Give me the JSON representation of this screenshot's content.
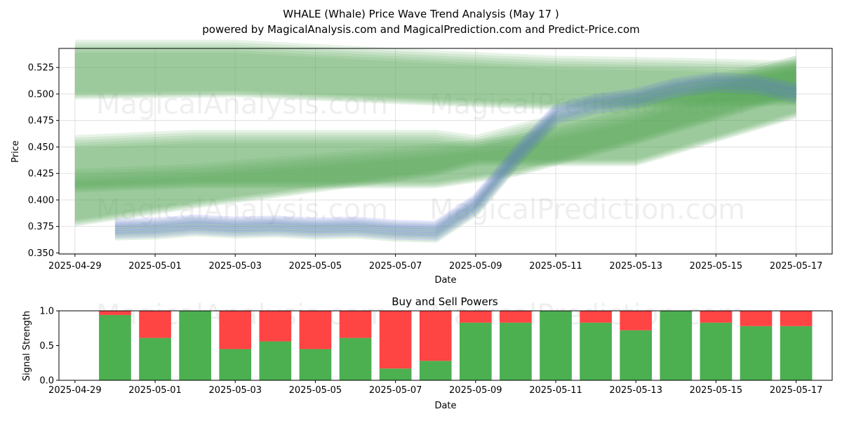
{
  "title_line1": "WHALE (Whale) Price Wave Trend Analysis (May 17 )",
  "title_line2": "powered by MagicalAnalysis.com and MagicalPrediction.com and Predict-Price.com",
  "watermarks": [
    "MagicalAnalysis.com",
    "MagicalPrediction.com"
  ],
  "colors": {
    "bullish": "#4caf50",
    "bearish": "#ff4444",
    "band_green": "#5aaa5a",
    "band_blue": "#6a6aff"
  },
  "chart_data": [
    {
      "type": "area",
      "xlabel": "Date",
      "ylabel": "Price",
      "x_ticks": [
        "2025-04-29",
        "2025-05-01",
        "2025-05-03",
        "2025-05-05",
        "2025-05-07",
        "2025-05-09",
        "2025-05-11",
        "2025-05-13",
        "2025-05-15",
        "2025-05-17"
      ],
      "y_ticks": [
        "0.350",
        "0.375",
        "0.400",
        "0.425",
        "0.450",
        "0.475",
        "0.500",
        "0.525"
      ],
      "xlim": [
        "2025-04-28.6",
        "2025-05-17.9"
      ],
      "ylim": [
        0.349,
        0.543
      ],
      "grid": true,
      "series": [
        {
          "kind": "price_wave",
          "x": [
            "2025-04-30",
            "2025-05-01",
            "2025-05-02",
            "2025-05-03",
            "2025-05-04",
            "2025-05-05",
            "2025-05-06",
            "2025-05-07",
            "2025-05-08",
            "2025-05-09",
            "2025-05-10",
            "2025-05-11",
            "2025-05-12",
            "2025-05-13",
            "2025-05-14",
            "2025-05-15",
            "2025-05-16",
            "2025-05-17"
          ],
          "values": [
            0.372,
            0.373,
            0.376,
            0.374,
            0.375,
            0.373,
            0.374,
            0.371,
            0.37,
            0.395,
            0.44,
            0.48,
            0.49,
            0.495,
            0.505,
            0.51,
            0.508,
            0.5
          ]
        },
        {
          "kind": "trend_band_upper",
          "x": [
            "2025-04-29",
            "2025-05-03",
            "2025-05-08",
            "2025-05-11",
            "2025-05-14",
            "2025-05-17"
          ],
          "upper": [
            0.545,
            0.545,
            0.535,
            0.53,
            0.528,
            0.525
          ],
          "lower": [
            0.498,
            0.5,
            0.492,
            0.488,
            0.49,
            0.492
          ]
        },
        {
          "kind": "trend_band_mid",
          "x": [
            "2025-04-29",
            "2025-05-02",
            "2025-05-08",
            "2025-05-10",
            "2025-05-13",
            "2025-05-17"
          ],
          "upper": [
            0.423,
            0.428,
            0.447,
            0.455,
            0.48,
            0.53
          ],
          "lower": [
            0.41,
            0.414,
            0.414,
            0.425,
            0.455,
            0.5
          ]
        },
        {
          "kind": "trend_band_outer",
          "x": [
            "2025-04-29",
            "2025-05-02",
            "2025-05-08",
            "2025-05-09",
            "2025-05-13",
            "2025-05-17"
          ],
          "upper": [
            0.455,
            0.46,
            0.46,
            0.455,
            0.495,
            0.53
          ],
          "lower": [
            0.378,
            0.395,
            0.425,
            0.435,
            0.435,
            0.48
          ]
        }
      ]
    },
    {
      "type": "bar",
      "title": "Buy and Sell Powers",
      "xlabel": "Date",
      "ylabel": "Signal Strength",
      "x_ticks": [
        "2025-04-29",
        "2025-05-01",
        "2025-05-03",
        "2025-05-05",
        "2025-05-07",
        "2025-05-09",
        "2025-05-11",
        "2025-05-13",
        "2025-05-15",
        "2025-05-17"
      ],
      "y_ticks": [
        "0.0",
        "0.5",
        "1.0"
      ],
      "ylim": [
        0,
        1
      ],
      "categories": [
        "2025-04-30",
        "2025-05-01",
        "2025-05-02",
        "2025-05-03",
        "2025-05-04",
        "2025-05-05",
        "2025-05-06",
        "2025-05-07",
        "2025-05-08",
        "2025-05-09",
        "2025-05-10",
        "2025-05-11",
        "2025-05-12",
        "2025-05-13",
        "2025-05-14",
        "2025-05-15",
        "2025-05-16",
        "2025-05-17"
      ],
      "series": [
        {
          "name": "Buy",
          "values": [
            0.94,
            0.61,
            1.0,
            0.45,
            0.56,
            0.45,
            0.61,
            0.17,
            0.28,
            0.83,
            0.83,
            1.0,
            0.83,
            0.72,
            1.0,
            0.83,
            0.78,
            0.78
          ]
        },
        {
          "name": "Sell",
          "values": [
            0.06,
            0.39,
            0.0,
            0.55,
            0.44,
            0.55,
            0.39,
            0.83,
            0.72,
            0.17,
            0.17,
            0.0,
            0.17,
            0.28,
            0.0,
            0.17,
            0.22,
            0.22
          ]
        }
      ]
    }
  ]
}
